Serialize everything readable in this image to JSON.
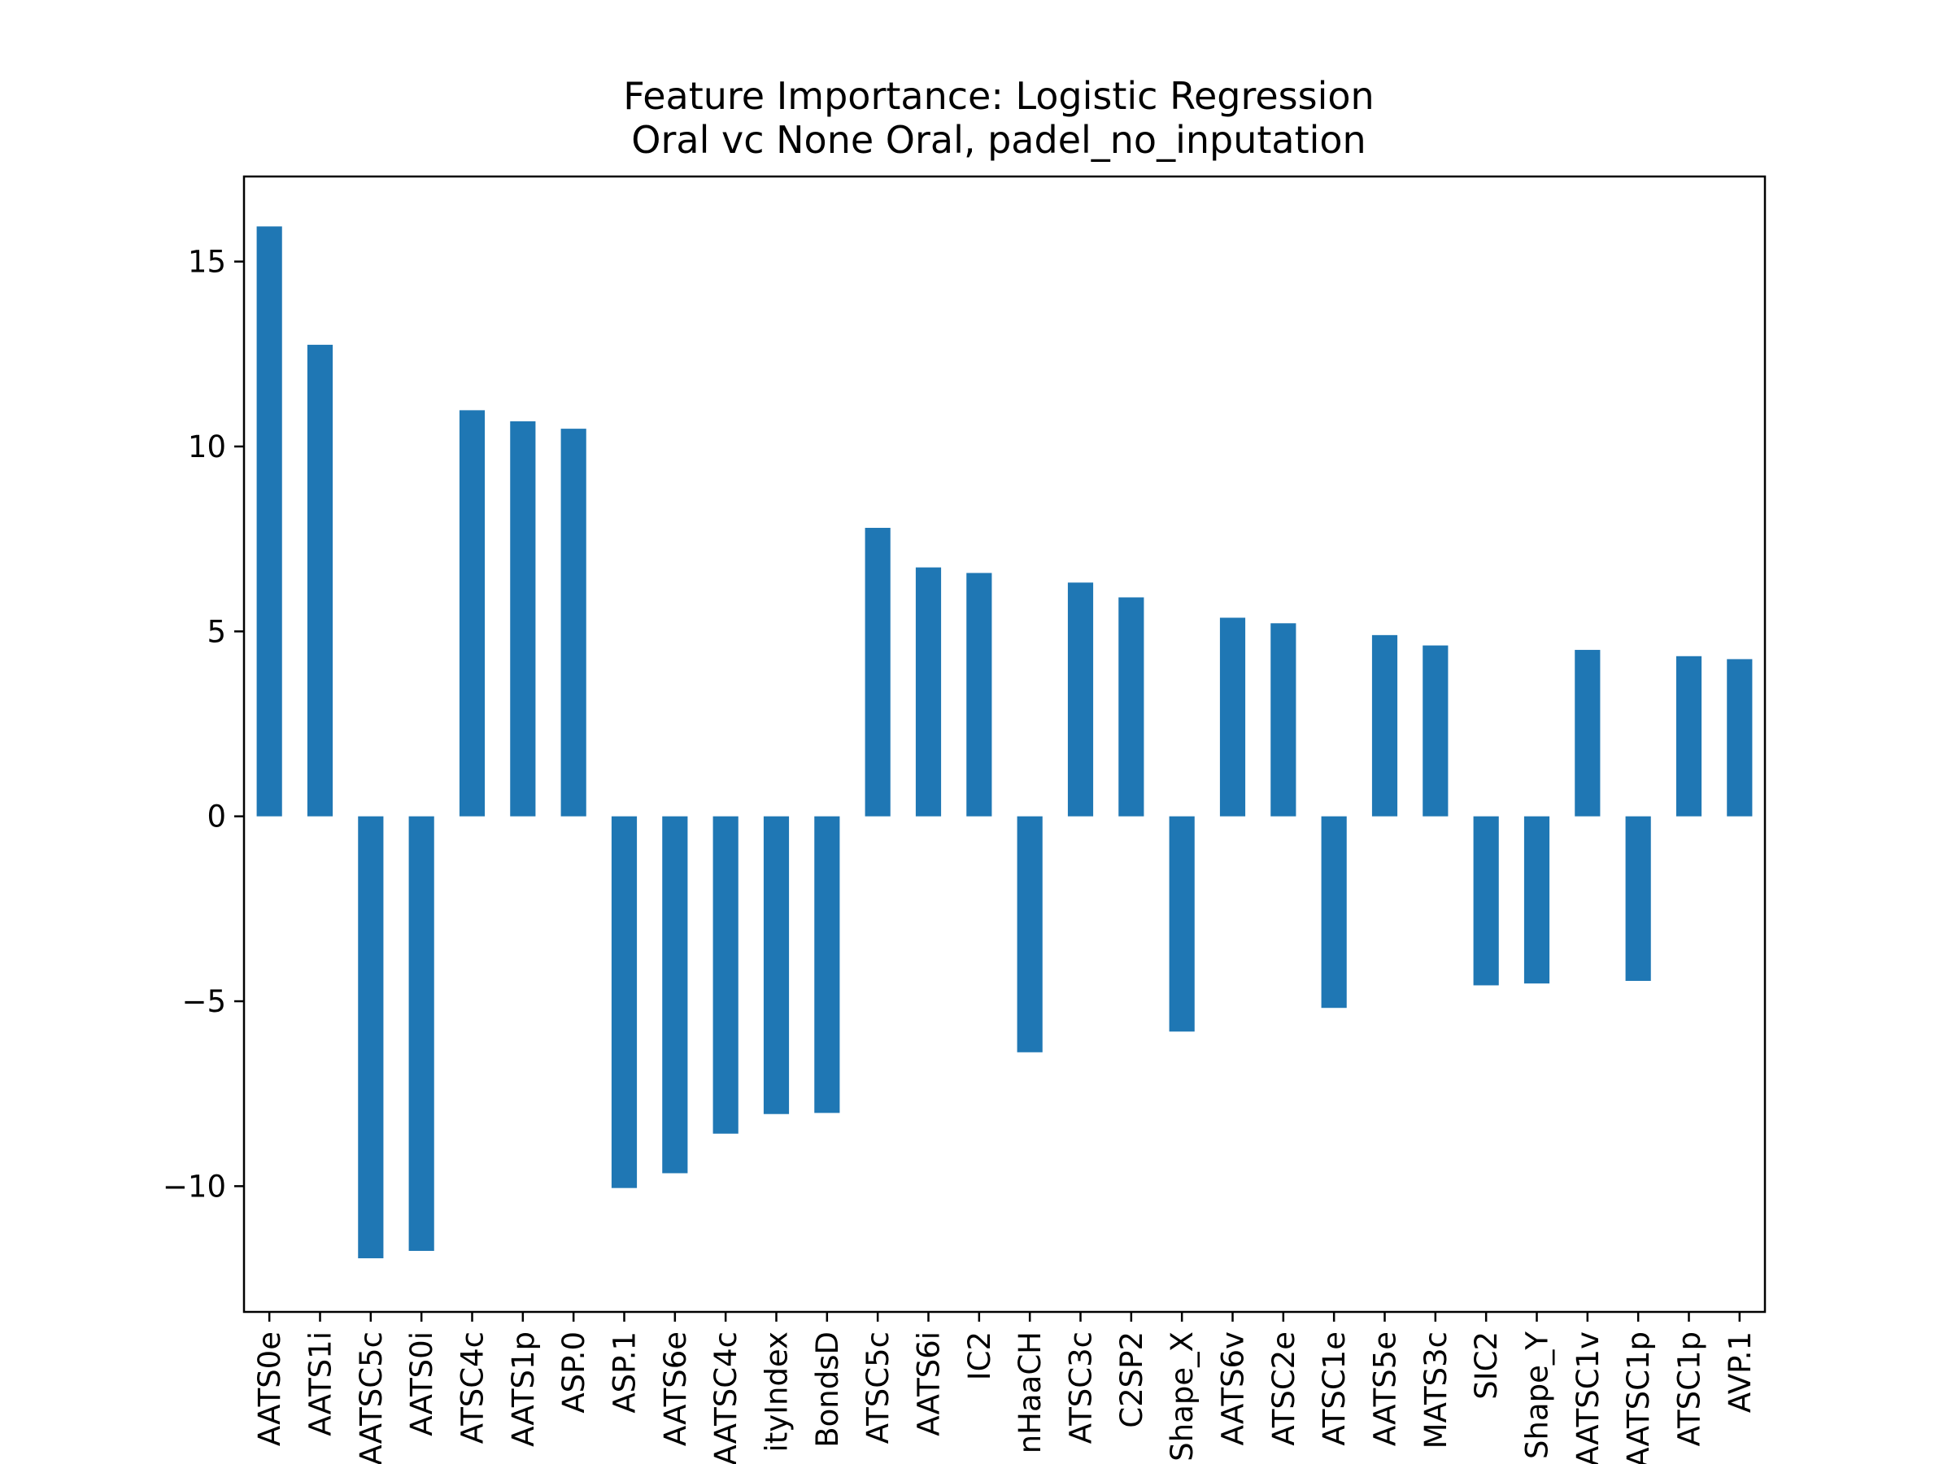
{
  "chart_data": {
    "type": "bar",
    "title": "Feature Importance: Logistic Regression",
    "subtitle": "Oral vc None Oral, padel_no_inputation",
    "xlabel": "",
    "ylabel": "",
    "ylim": [
      -13.4,
      17.3
    ],
    "yticks": [
      15,
      10,
      5,
      0,
      -5,
      -10
    ],
    "ytick_labels": [
      "15",
      "10",
      "5",
      "0",
      "−5",
      "−10"
    ],
    "grid": false,
    "legend": "none",
    "bar_color": "#1f77b4",
    "categories": [
      "AATS0e",
      "AATS1i",
      "AATSC5c",
      "AATS0i",
      "ATSC4c",
      "AATS1p",
      "ASP.0",
      "ASP.1",
      "AATS6e",
      "AATSC4c",
      "ityIndex",
      "BondsD",
      "ATSC5c",
      "AATS6i",
      "IC2",
      "nHaaCH",
      "ATSC3c",
      "C2SP2",
      "Shape_X",
      "AATS6v",
      "ATSC2e",
      "ATSC1e",
      "AATS5e",
      "MATS3c",
      "SIC2",
      "Shape_Y",
      "AATSC1v",
      "AATSC1p",
      "ATSC1p",
      "AVP.1"
    ],
    "values": [
      15.95,
      12.75,
      -11.95,
      -11.75,
      10.98,
      10.68,
      10.48,
      -10.05,
      -9.65,
      -8.58,
      -8.05,
      -8.02,
      7.8,
      6.73,
      6.58,
      -6.38,
      6.32,
      5.92,
      -5.82,
      5.37,
      5.22,
      -5.18,
      4.9,
      4.62,
      -4.57,
      -4.52,
      4.5,
      -4.45,
      4.33,
      4.25
    ]
  }
}
